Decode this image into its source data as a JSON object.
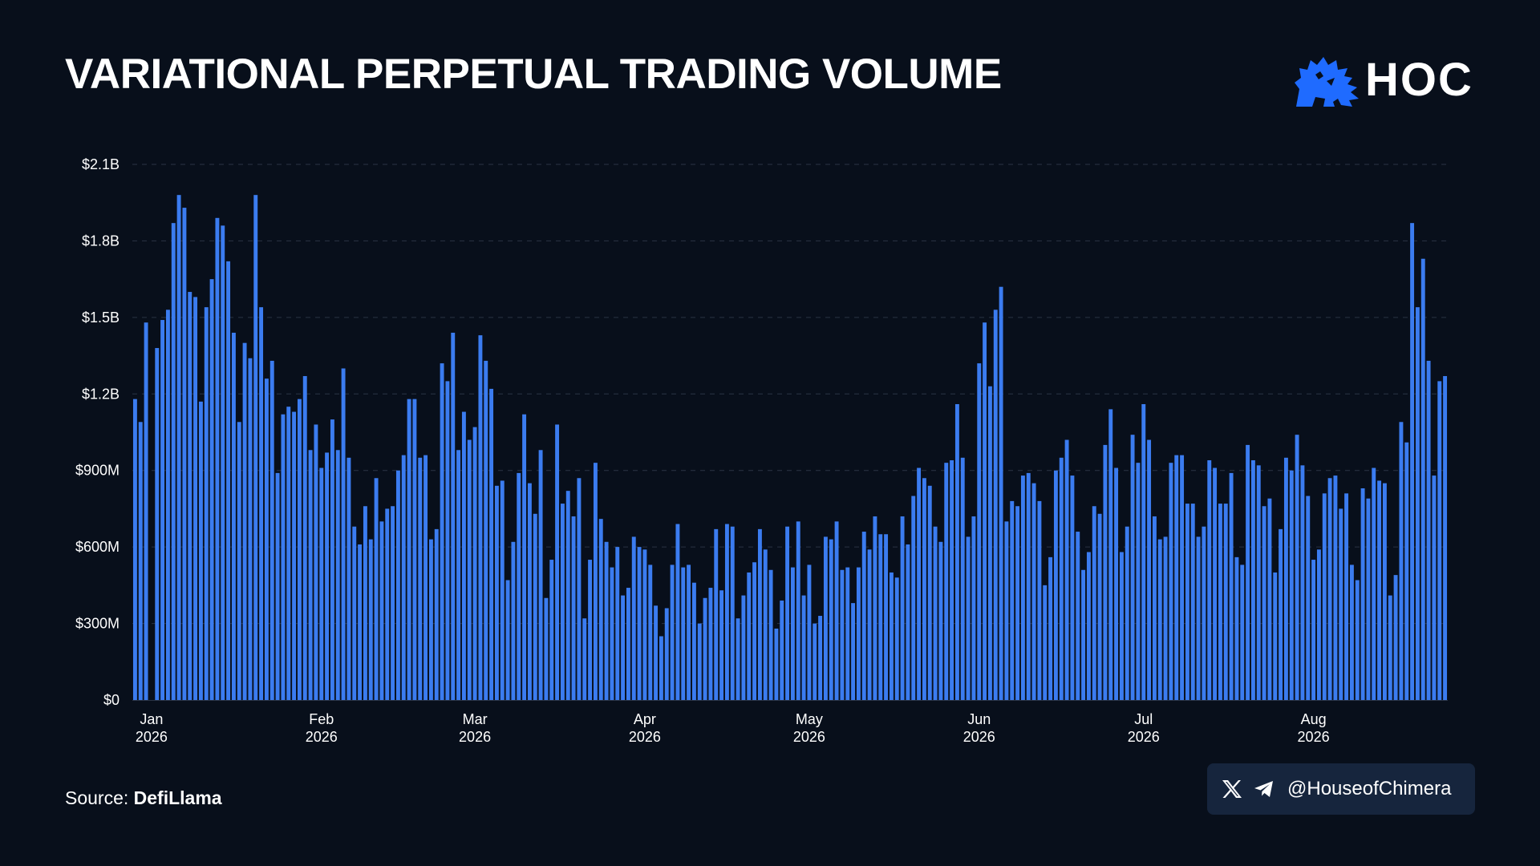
{
  "header": {
    "title": "VARIATIONAL PERPETUAL TRADING VOLUME",
    "logo_text": "HOC",
    "logo_icon": "lion-icon"
  },
  "footer": {
    "source_prefix": "Source:",
    "source_name": "DefiLlama",
    "handle": "@HouseofChimera",
    "social_icons": [
      "x-icon",
      "telegram-icon"
    ]
  },
  "colors": {
    "background": "#080f1b",
    "bar": "#3b7cf0",
    "grid": "#2a3344",
    "text": "#ffffff",
    "accent": "#1f6bff",
    "badge": "#16253d"
  },
  "chart_data": {
    "type": "bar",
    "title": "VARIATIONAL PERPETUAL TRADING VOLUME",
    "xlabel": "",
    "ylabel": "",
    "ylim": [
      0,
      2100000000
    ],
    "grid": true,
    "y_ticks": [
      {
        "value": 0,
        "label": "$0"
      },
      {
        "value": 300000000,
        "label": "$300M"
      },
      {
        "value": 600000000,
        "label": "$600M"
      },
      {
        "value": 900000000,
        "label": "$900M"
      },
      {
        "value": 1200000000,
        "label": "$1.2B"
      },
      {
        "value": 1500000000,
        "label": "$1.5B"
      },
      {
        "value": 1800000000,
        "label": "$1.8B"
      },
      {
        "value": 2100000000,
        "label": "$2.1B"
      }
    ],
    "x_ticks": [
      {
        "date": "2026-01-01",
        "label": "Jan",
        "year": "2026"
      },
      {
        "date": "2026-02-01",
        "label": "Feb",
        "year": "2026"
      },
      {
        "date": "2026-03-01",
        "label": "Mar",
        "year": "2026"
      },
      {
        "date": "2026-04-01",
        "label": "Apr",
        "year": "2026"
      },
      {
        "date": "2026-05-01",
        "label": "May",
        "year": "2026"
      },
      {
        "date": "2026-06-01",
        "label": "Jun",
        "year": "2026"
      },
      {
        "date": "2026-07-01",
        "label": "Jul",
        "year": "2026"
      },
      {
        "date": "2026-08-01",
        "label": "Aug",
        "year": "2026"
      }
    ],
    "start_date": "2025-12-29",
    "values": [
      1180000000,
      1090000000,
      1480000000,
      0,
      1380000000,
      1490000000,
      1530000000,
      1870000000,
      1980000000,
      1930000000,
      1600000000,
      1580000000,
      1170000000,
      1540000000,
      1650000000,
      1890000000,
      1860000000,
      1720000000,
      1440000000,
      1090000000,
      1400000000,
      1340000000,
      1980000000,
      1540000000,
      1260000000,
      1330000000,
      890000000,
      1120000000,
      1150000000,
      1130000000,
      1180000000,
      1270000000,
      980000000,
      1080000000,
      910000000,
      970000000,
      1100000000,
      980000000,
      1300000000,
      950000000,
      680000000,
      610000000,
      760000000,
      630000000,
      870000000,
      700000000,
      750000000,
      760000000,
      900000000,
      960000000,
      1180000000,
      1180000000,
      950000000,
      960000000,
      630000000,
      670000000,
      1320000000,
      1250000000,
      1440000000,
      980000000,
      1130000000,
      1020000000,
      1070000000,
      1430000000,
      1330000000,
      1220000000,
      840000000,
      860000000,
      470000000,
      620000000,
      890000000,
      1120000000,
      850000000,
      730000000,
      980000000,
      400000000,
      550000000,
      1080000000,
      770000000,
      820000000,
      720000000,
      870000000,
      320000000,
      550000000,
      930000000,
      710000000,
      620000000,
      520000000,
      600000000,
      410000000,
      440000000,
      640000000,
      600000000,
      590000000,
      530000000,
      370000000,
      250000000,
      360000000,
      530000000,
      690000000,
      520000000,
      530000000,
      460000000,
      300000000,
      400000000,
      440000000,
      670000000,
      430000000,
      690000000,
      680000000,
      320000000,
      410000000,
      500000000,
      540000000,
      670000000,
      590000000,
      510000000,
      280000000,
      390000000,
      680000000,
      520000000,
      700000000,
      410000000,
      530000000,
      300000000,
      330000000,
      640000000,
      630000000,
      700000000,
      510000000,
      520000000,
      380000000,
      520000000,
      660000000,
      590000000,
      720000000,
      650000000,
      650000000,
      500000000,
      480000000,
      720000000,
      610000000,
      800000000,
      910000000,
      870000000,
      840000000,
      680000000,
      620000000,
      930000000,
      940000000,
      1160000000,
      950000000,
      640000000,
      720000000,
      1320000000,
      1480000000,
      1230000000,
      1530000000,
      1620000000,
      700000000,
      780000000,
      760000000,
      880000000,
      890000000,
      850000000,
      780000000,
      450000000,
      560000000,
      900000000,
      950000000,
      1020000000,
      880000000,
      660000000,
      510000000,
      580000000,
      760000000,
      730000000,
      1000000000,
      1140000000,
      910000000,
      580000000,
      680000000,
      1040000000,
      930000000,
      1160000000,
      1020000000,
      720000000,
      630000000,
      640000000,
      930000000,
      960000000,
      960000000,
      770000000,
      770000000,
      640000000,
      680000000,
      940000000,
      910000000,
      770000000,
      770000000,
      890000000,
      560000000,
      530000000,
      1000000000,
      940000000,
      920000000,
      760000000,
      790000000,
      500000000,
      670000000,
      950000000,
      900000000,
      1040000000,
      920000000,
      800000000,
      550000000,
      590000000,
      810000000,
      870000000,
      880000000,
      750000000,
      810000000,
      530000000,
      470000000,
      830000000,
      790000000,
      910000000,
      860000000,
      850000000,
      410000000,
      490000000,
      1090000000,
      1010000000,
      1870000000,
      1540000000,
      1730000000,
      1330000000,
      880000000,
      1250000000,
      1270000000
    ]
  }
}
